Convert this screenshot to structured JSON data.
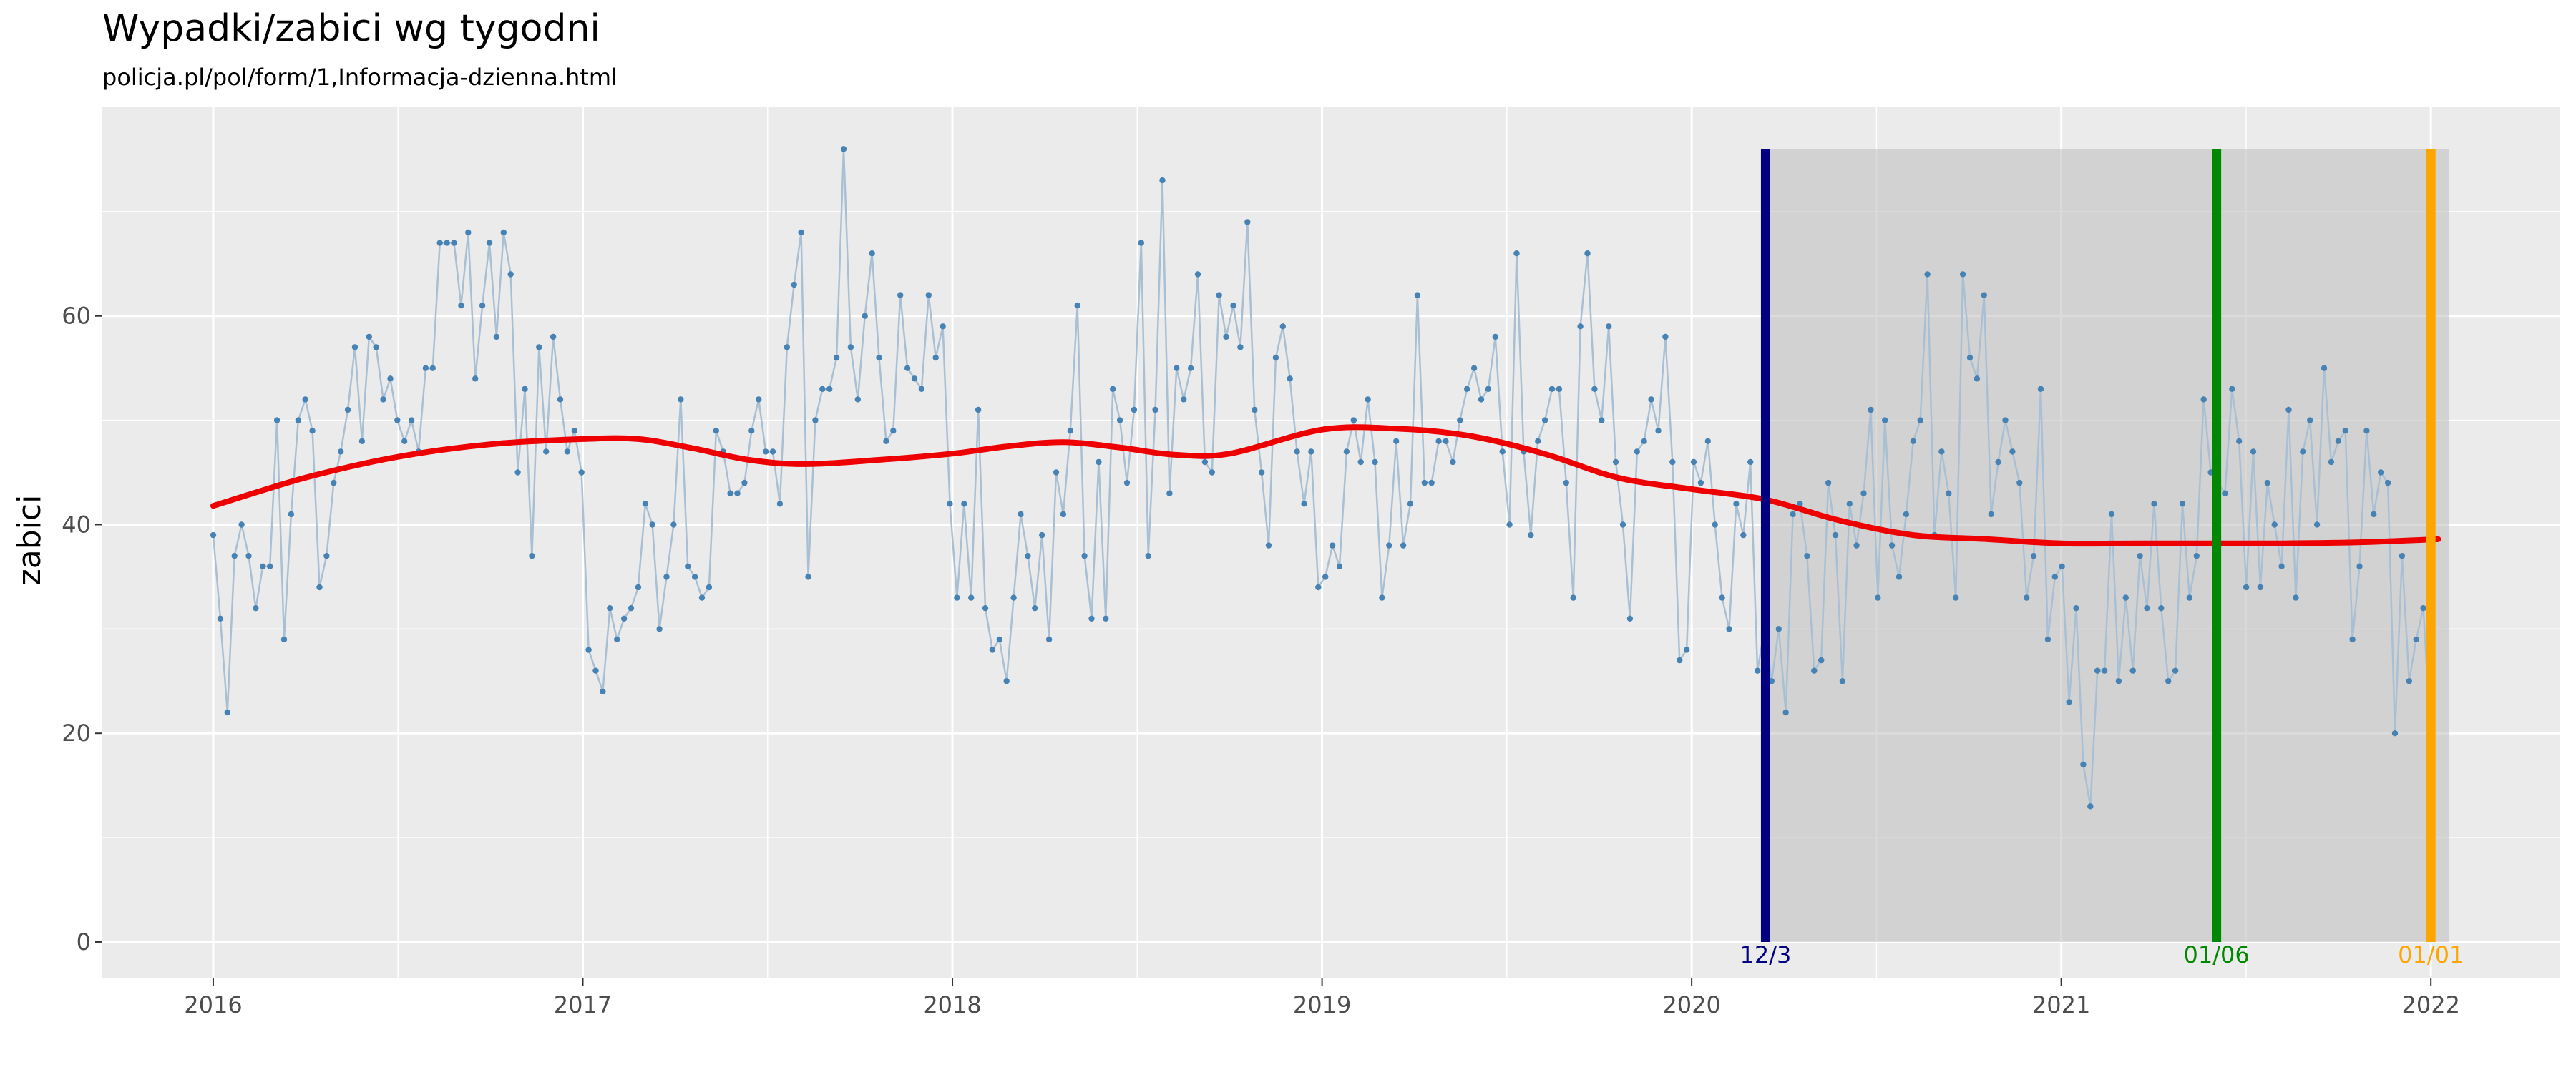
{
  "chart_data": {
    "type": "line",
    "title": "Wypadki/zabici wg tygodni",
    "subtitle": "policja.pl/pol/form/1,Informacja-dzienna.html",
    "xlabel": "",
    "ylabel": "zabici",
    "xlim": [
      2015.7,
      2022.35
    ],
    "ylim": [
      -3.5,
      80
    ],
    "x_ticks": [
      {
        "value": 2016,
        "label": "2016"
      },
      {
        "value": 2017,
        "label": "2017"
      },
      {
        "value": 2018,
        "label": "2018"
      },
      {
        "value": 2019,
        "label": "2019"
      },
      {
        "value": 2020,
        "label": "2020"
      },
      {
        "value": 2021,
        "label": "2021"
      },
      {
        "value": 2022,
        "label": "2022"
      }
    ],
    "y_ticks": [
      {
        "value": 0,
        "label": "0"
      },
      {
        "value": 20,
        "label": "20"
      },
      {
        "value": 40,
        "label": "40"
      },
      {
        "value": 60,
        "label": "60"
      }
    ],
    "grid": true,
    "series": [
      {
        "color": "#4682b4",
        "line_color": "#a9c0d4",
        "start": 2016.0,
        "step_years": 0.019165,
        "values": [
          39,
          31,
          22,
          37,
          40,
          37,
          32,
          36,
          36,
          50,
          29,
          41,
          50,
          52,
          49,
          34,
          37,
          44,
          47,
          51,
          57,
          48,
          58,
          57,
          52,
          54,
          50,
          48,
          50,
          47,
          55,
          55,
          67,
          67,
          67,
          61,
          68,
          54,
          61,
          67,
          58,
          68,
          64,
          45,
          53,
          37,
          57,
          47,
          58,
          52,
          47,
          49,
          45,
          28,
          26,
          24,
          32,
          29,
          31,
          32,
          34,
          42,
          40,
          30,
          35,
          40,
          52,
          36,
          35,
          33,
          34,
          49,
          47,
          43,
          43,
          44,
          49,
          52,
          47,
          47,
          42,
          57,
          63,
          68,
          35,
          50,
          53,
          53,
          56,
          76,
          57,
          52,
          60,
          66,
          56,
          48,
          49,
          62,
          55,
          54,
          53,
          62,
          56,
          59,
          42,
          33,
          42,
          33,
          51,
          32,
          28,
          29,
          25,
          33,
          41,
          37,
          32,
          39,
          29,
          45,
          41,
          49,
          61,
          37,
          31,
          46,
          31,
          53,
          50,
          44,
          51,
          67,
          37,
          51,
          73,
          43,
          55,
          52,
          55,
          64,
          46,
          45,
          62,
          58,
          61,
          57,
          69,
          51,
          45,
          38,
          56,
          59,
          54,
          47,
          42,
          47,
          34,
          35,
          38,
          36,
          47,
          50,
          46,
          52,
          46,
          33,
          38,
          48,
          38,
          42,
          62,
          44,
          44,
          48,
          48,
          46,
          50,
          53,
          55,
          52,
          53,
          58,
          47,
          40,
          66,
          47,
          39,
          48,
          50,
          53,
          53,
          44,
          33,
          59,
          66,
          53,
          50,
          59,
          46,
          40,
          31,
          47,
          48,
          52,
          49,
          58,
          46,
          27,
          28,
          46,
          44,
          48,
          40,
          33,
          30,
          42,
          39,
          46,
          26,
          30,
          25,
          30,
          22,
          41,
          42,
          37,
          26,
          27,
          44,
          39,
          25,
          42,
          38,
          43,
          51,
          33,
          50,
          38,
          35,
          41,
          48,
          50,
          64,
          39,
          47,
          43,
          33,
          64,
          56,
          54,
          62,
          41,
          46,
          50,
          47,
          44,
          33,
          37,
          53,
          29,
          35,
          36,
          23,
          32,
          17,
          13,
          26,
          26,
          41,
          25,
          33,
          26,
          37,
          32,
          42,
          32,
          25,
          26,
          42,
          33,
          37,
          52,
          45,
          44,
          43,
          53,
          48,
          34,
          47,
          34,
          44,
          40,
          36,
          51,
          33,
          47,
          50,
          40,
          55,
          46,
          48,
          49,
          29,
          36,
          49,
          41,
          45,
          44,
          20,
          37,
          25,
          29,
          32,
          20
        ]
      },
      {
        "color": "#ee0000",
        "x": [
          2016.0,
          2016.25,
          2016.5,
          2016.75,
          2017.0,
          2017.15,
          2017.3,
          2017.45,
          2017.6,
          2017.8,
          2018.0,
          2018.15,
          2018.3,
          2018.45,
          2018.6,
          2018.75,
          2019.0,
          2019.2,
          2019.4,
          2019.6,
          2019.8,
          2020.0,
          2020.2,
          2020.4,
          2020.6,
          2020.8,
          2021.0,
          2021.2,
          2021.4,
          2021.6,
          2021.8,
          2022.02
        ],
        "y": [
          41.8,
          44.5,
          46.5,
          47.7,
          48.2,
          48.2,
          47.3,
          46.2,
          45.8,
          46.2,
          46.8,
          47.5,
          47.9,
          47.4,
          46.7,
          46.8,
          49.1,
          49.2,
          48.5,
          46.8,
          44.5,
          43.4,
          42.4,
          40.4,
          39.0,
          38.6,
          38.2,
          38.2,
          38.2,
          38.2,
          38.3,
          38.6
        ]
      }
    ],
    "shaded_region": {
      "x_start": 2020.19,
      "x_end": 2022.05,
      "y_top": 76,
      "color": "#bdbdbd"
    },
    "annotations": [
      {
        "x": 2020.2,
        "label": "12/3",
        "color": "#000080"
      },
      {
        "x": 2021.42,
        "label": "01/06",
        "color": "#008800"
      },
      {
        "x": 2022.0,
        "label": "01/01",
        "color": "#ffa500"
      }
    ]
  }
}
